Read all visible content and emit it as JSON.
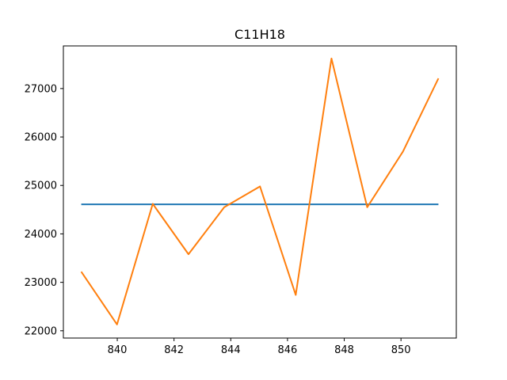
{
  "chart_data": {
    "type": "line",
    "title": "C11H18",
    "xlabel": "",
    "ylabel": "",
    "xlim": [
      838.1,
      851.95
    ],
    "ylim": [
      21850,
      27880
    ],
    "grid": false,
    "x_ticks": [
      840,
      842,
      844,
      846,
      848,
      850
    ],
    "y_ticks": [
      22000,
      23000,
      24000,
      25000,
      26000,
      27000
    ],
    "series": [
      {
        "color": "#1f77b4",
        "x": [
          838.73,
          851.32
        ],
        "y": [
          24610,
          24610
        ]
      },
      {
        "color": "#ff7f0e",
        "x": [
          838.73,
          839.99,
          841.25,
          842.51,
          843.77,
          845.03,
          846.29,
          847.55,
          848.81,
          850.07,
          851.32
        ],
        "y": [
          23220,
          22130,
          24620,
          23580,
          24550,
          24980,
          22740,
          27620,
          24550,
          25700,
          27210
        ]
      }
    ]
  }
}
